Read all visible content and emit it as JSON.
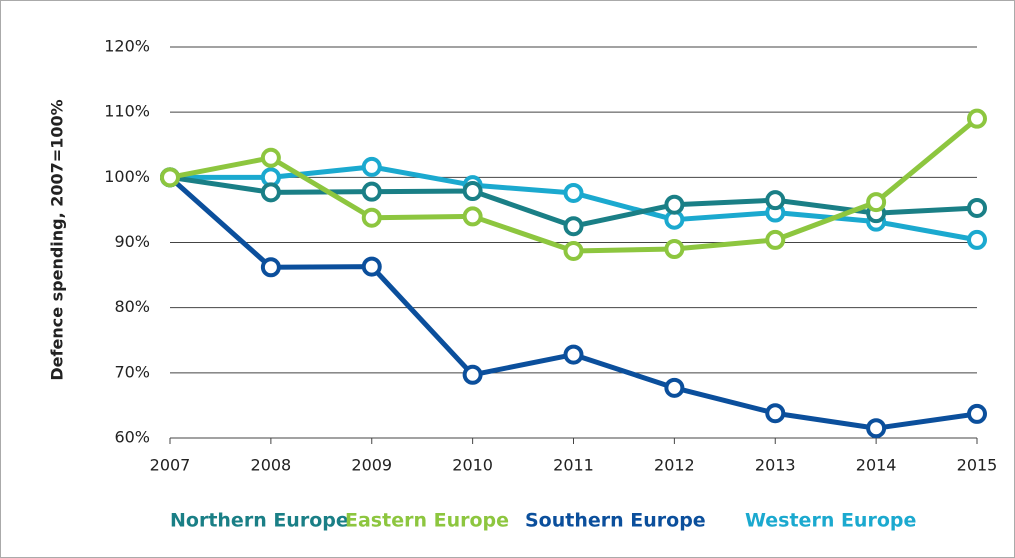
{
  "chart_data": {
    "type": "line",
    "y_label": "Defence spending, 2007=100%",
    "categories": [
      "2007",
      "2008",
      "2009",
      "2010",
      "2011",
      "2012",
      "2013",
      "2014",
      "2015"
    ],
    "series": [
      {
        "name": "Northern Europe",
        "color": "#1a7f86",
        "values": [
          100,
          97.7,
          97.8,
          97.9,
          92.5,
          95.8,
          96.5,
          94.5,
          95.3
        ]
      },
      {
        "name": "Eastern Europe",
        "color": "#8dc63f",
        "values": [
          100,
          103,
          93.8,
          94,
          88.7,
          89,
          90.4,
          96.2,
          109
        ]
      },
      {
        "name": "Southern Europe",
        "color": "#0b4f9c",
        "values": [
          100,
          86.2,
          86.3,
          69.7,
          72.8,
          67.7,
          63.8,
          61.5,
          63.7
        ]
      },
      {
        "name": "Western Europe",
        "color": "#1ba9cf",
        "values": [
          100,
          100,
          101.6,
          98.8,
          97.6,
          93.5,
          94.6,
          93.2,
          90.4
        ]
      }
    ],
    "ylim": [
      60,
      120
    ],
    "yticks": [
      {
        "value": 60,
        "label": "60%"
      },
      {
        "value": 70,
        "label": "70%"
      },
      {
        "value": 80,
        "label": "80%"
      },
      {
        "value": 90,
        "label": "90%"
      },
      {
        "value": 100,
        "label": "100%"
      },
      {
        "value": 110,
        "label": "110%"
      },
      {
        "value": 120,
        "label": "120%"
      }
    ],
    "grid": true,
    "legend": "bottom"
  }
}
